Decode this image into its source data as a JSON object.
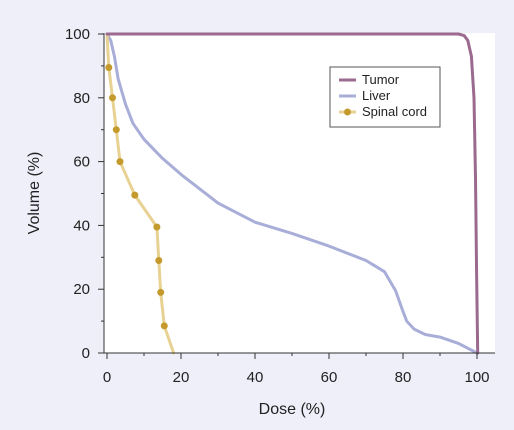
{
  "chart_data": {
    "type": "line",
    "title": "",
    "xlabel": "Dose (%)",
    "ylabel": "Volume (%)",
    "xlim": [
      0,
      103
    ],
    "ylim": [
      0,
      100
    ],
    "x_ticks": [
      0,
      20,
      40,
      60,
      80,
      100
    ],
    "y_ticks": [
      0,
      20,
      40,
      60,
      80,
      100
    ],
    "x_tick_labels": [
      "0",
      "20",
      "40",
      "60",
      "80",
      "100"
    ],
    "y_tick_labels": [
      "0",
      "20",
      "40",
      "60",
      "80",
      "100"
    ],
    "grid": false,
    "legend_position": "top-right",
    "series": [
      {
        "name": "Tumor",
        "color": "#9b6a8e",
        "marker": "none",
        "x": [
          0,
          20,
          40,
          60,
          80,
          95,
          96.5,
          97.5,
          98.5,
          99.2,
          99.6,
          99.9,
          100.2
        ],
        "y": [
          100,
          100,
          100,
          100,
          100,
          100,
          99.5,
          98,
          93,
          80,
          55,
          25,
          0
        ]
      },
      {
        "name": "Liver",
        "color": "#a8aed8",
        "marker": "none",
        "x": [
          0,
          1,
          2,
          3,
          5,
          7,
          10,
          15,
          20,
          30,
          40,
          50,
          60,
          70,
          75,
          78,
          80,
          81,
          83,
          86,
          90,
          95,
          100
        ],
        "y": [
          100,
          98,
          93,
          86,
          78,
          72,
          67,
          61,
          56,
          47,
          41,
          37.5,
          33.5,
          29,
          25.5,
          19.5,
          13,
          10,
          7.5,
          5.8,
          5,
          3,
          0
        ]
      },
      {
        "name": "Spinal cord",
        "color": "#e8d293",
        "marker": "circle",
        "marker_color": "#c49a2c",
        "x": [
          0,
          0.5,
          1.5,
          2.5,
          3.5,
          7.5,
          13.5,
          14,
          14.5,
          15.5,
          18
        ],
        "y": [
          100,
          89.5,
          80,
          70,
          60,
          49.5,
          39.5,
          29,
          19,
          8.5,
          0
        ],
        "marker_x": [
          0.5,
          1.5,
          2.5,
          3.5,
          7.5,
          13.5,
          14,
          14.5,
          15.5
        ],
        "marker_y": [
          89.5,
          80,
          70,
          60,
          49.5,
          39.5,
          29,
          19,
          8.5
        ]
      }
    ]
  }
}
